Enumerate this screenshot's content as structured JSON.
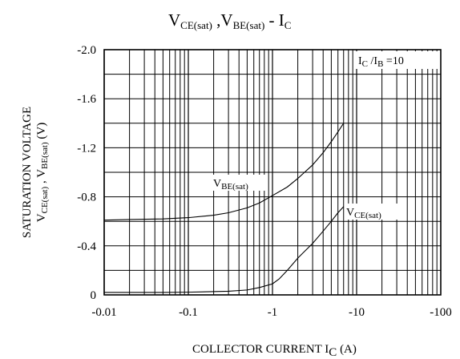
{
  "chart_data": {
    "type": "line",
    "title": {
      "part1_main": "V",
      "part1_sub": "CE(sat)",
      "separator": " ,",
      "part2_main": "V",
      "part2_sub": "BE(sat)",
      "dash": " - ",
      "part3_main": "I",
      "part3_sub": "C"
    },
    "xlabel": {
      "main": "COLLECTOR CURRENT I",
      "sub": "C",
      "unit": "(A)"
    },
    "ylabel": {
      "line1": "SATURATION VOLTAGE",
      "line2_a": "V",
      "line2_a_sub": "CE(sat)",
      "line2_sep": " , ",
      "line2_b": "V",
      "line2_b_sub": "BE(sat)",
      "line2_unit": " (V)"
    },
    "x_scale": "log",
    "x_range": [
      0.01,
      100
    ],
    "x_reversed_sign": true,
    "y_range": [
      0,
      -2.0
    ],
    "x_ticks": [
      {
        "value": 0.01,
        "label": "-0.01"
      },
      {
        "value": 0.1,
        "label": "-0.1"
      },
      {
        "value": 1,
        "label": "-1"
      },
      {
        "value": 10,
        "label": "-10"
      },
      {
        "value": 100,
        "label": "-100"
      }
    ],
    "y_ticks": [
      {
        "value": 0,
        "label": "0"
      },
      {
        "value": -0.4,
        "label": "-0.4"
      },
      {
        "value": -0.8,
        "label": "-0.8"
      },
      {
        "value": -1.2,
        "label": "-1.2"
      },
      {
        "value": -1.6,
        "label": "-1.6"
      },
      {
        "value": -2.0,
        "label": "-2.0"
      }
    ],
    "grid": true,
    "condition": {
      "a": "I",
      "a_sub": "C",
      "sep": " /I",
      "b_sub": "B",
      "rest": " =10"
    },
    "series": [
      {
        "name": "BE(sat)",
        "label_main": "V",
        "label_sub": "BE(sat)",
        "x": [
          0.01,
          0.02,
          0.05,
          0.1,
          0.2,
          0.3,
          0.5,
          0.7,
          1,
          1.5,
          2,
          3,
          4,
          5,
          6,
          7
        ],
        "y": [
          -0.61,
          -0.615,
          -0.62,
          -0.63,
          -0.65,
          -0.67,
          -0.71,
          -0.75,
          -0.81,
          -0.88,
          -0.95,
          -1.06,
          -1.16,
          -1.25,
          -1.33,
          -1.4
        ]
      },
      {
        "name": "CE(sat)",
        "label_main": "V",
        "label_sub": "CE(sat)",
        "x": [
          0.01,
          0.05,
          0.1,
          0.3,
          0.5,
          0.7,
          1,
          1.2,
          1.5,
          2,
          3,
          4,
          5,
          6,
          7
        ],
        "y": [
          -0.02,
          -0.02,
          -0.022,
          -0.03,
          -0.04,
          -0.06,
          -0.09,
          -0.13,
          -0.2,
          -0.3,
          -0.42,
          -0.52,
          -0.6,
          -0.67,
          -0.72
        ]
      }
    ]
  }
}
